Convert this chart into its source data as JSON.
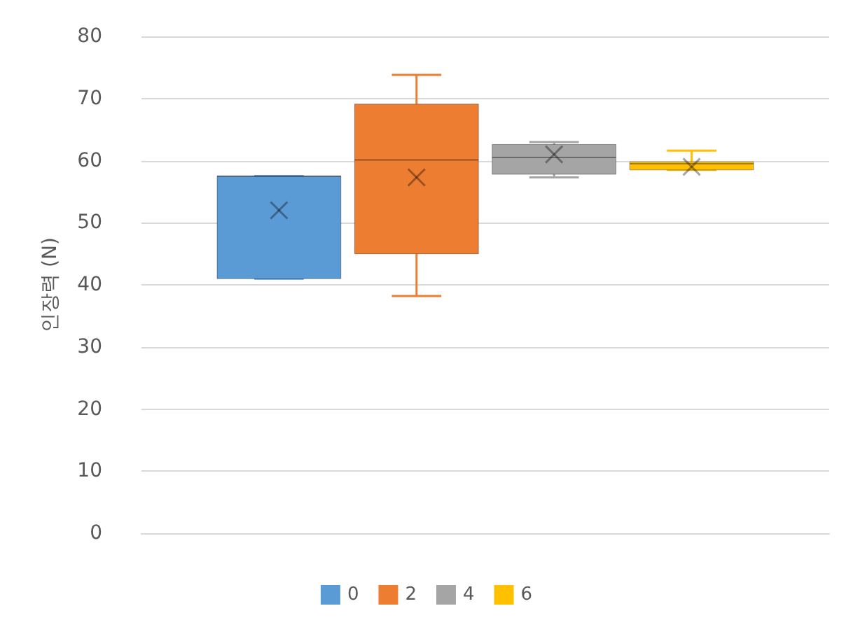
{
  "chart_data": {
    "type": "box",
    "ylabel": "인장력 (N)",
    "categories": [
      null
    ],
    "ylim": [
      0,
      80
    ],
    "yticks": [
      0,
      10,
      20,
      30,
      40,
      50,
      60,
      70,
      80
    ],
    "grid": "y",
    "legend": "bottom",
    "marker": "cross",
    "series": [
      {
        "name": "0",
        "color": "#5b9bd5",
        "boxes": [
          {
            "low": 41,
            "q1": 41,
            "median": 57.5,
            "q3": 57.5,
            "high": 57.5,
            "mean": 52
          }
        ]
      },
      {
        "name": "2",
        "color": "#ed7d31",
        "boxes": [
          {
            "low": 38.2,
            "q1": 45,
            "median": 60.1,
            "q3": 69.1,
            "high": 73.8,
            "mean": 57.3
          }
        ]
      },
      {
        "name": "4",
        "color": "#a5a5a5",
        "boxes": [
          {
            "low": 57.3,
            "q1": 57.8,
            "median": 60.5,
            "q3": 62.6,
            "high": 63,
            "mean": 61
          }
        ]
      },
      {
        "name": "6",
        "color": "#ffc000",
        "boxes": [
          {
            "low": 58.5,
            "q1": 58.5,
            "median": 59.5,
            "q3": 59.8,
            "high": 61.6,
            "mean": 59
          }
        ]
      }
    ]
  }
}
